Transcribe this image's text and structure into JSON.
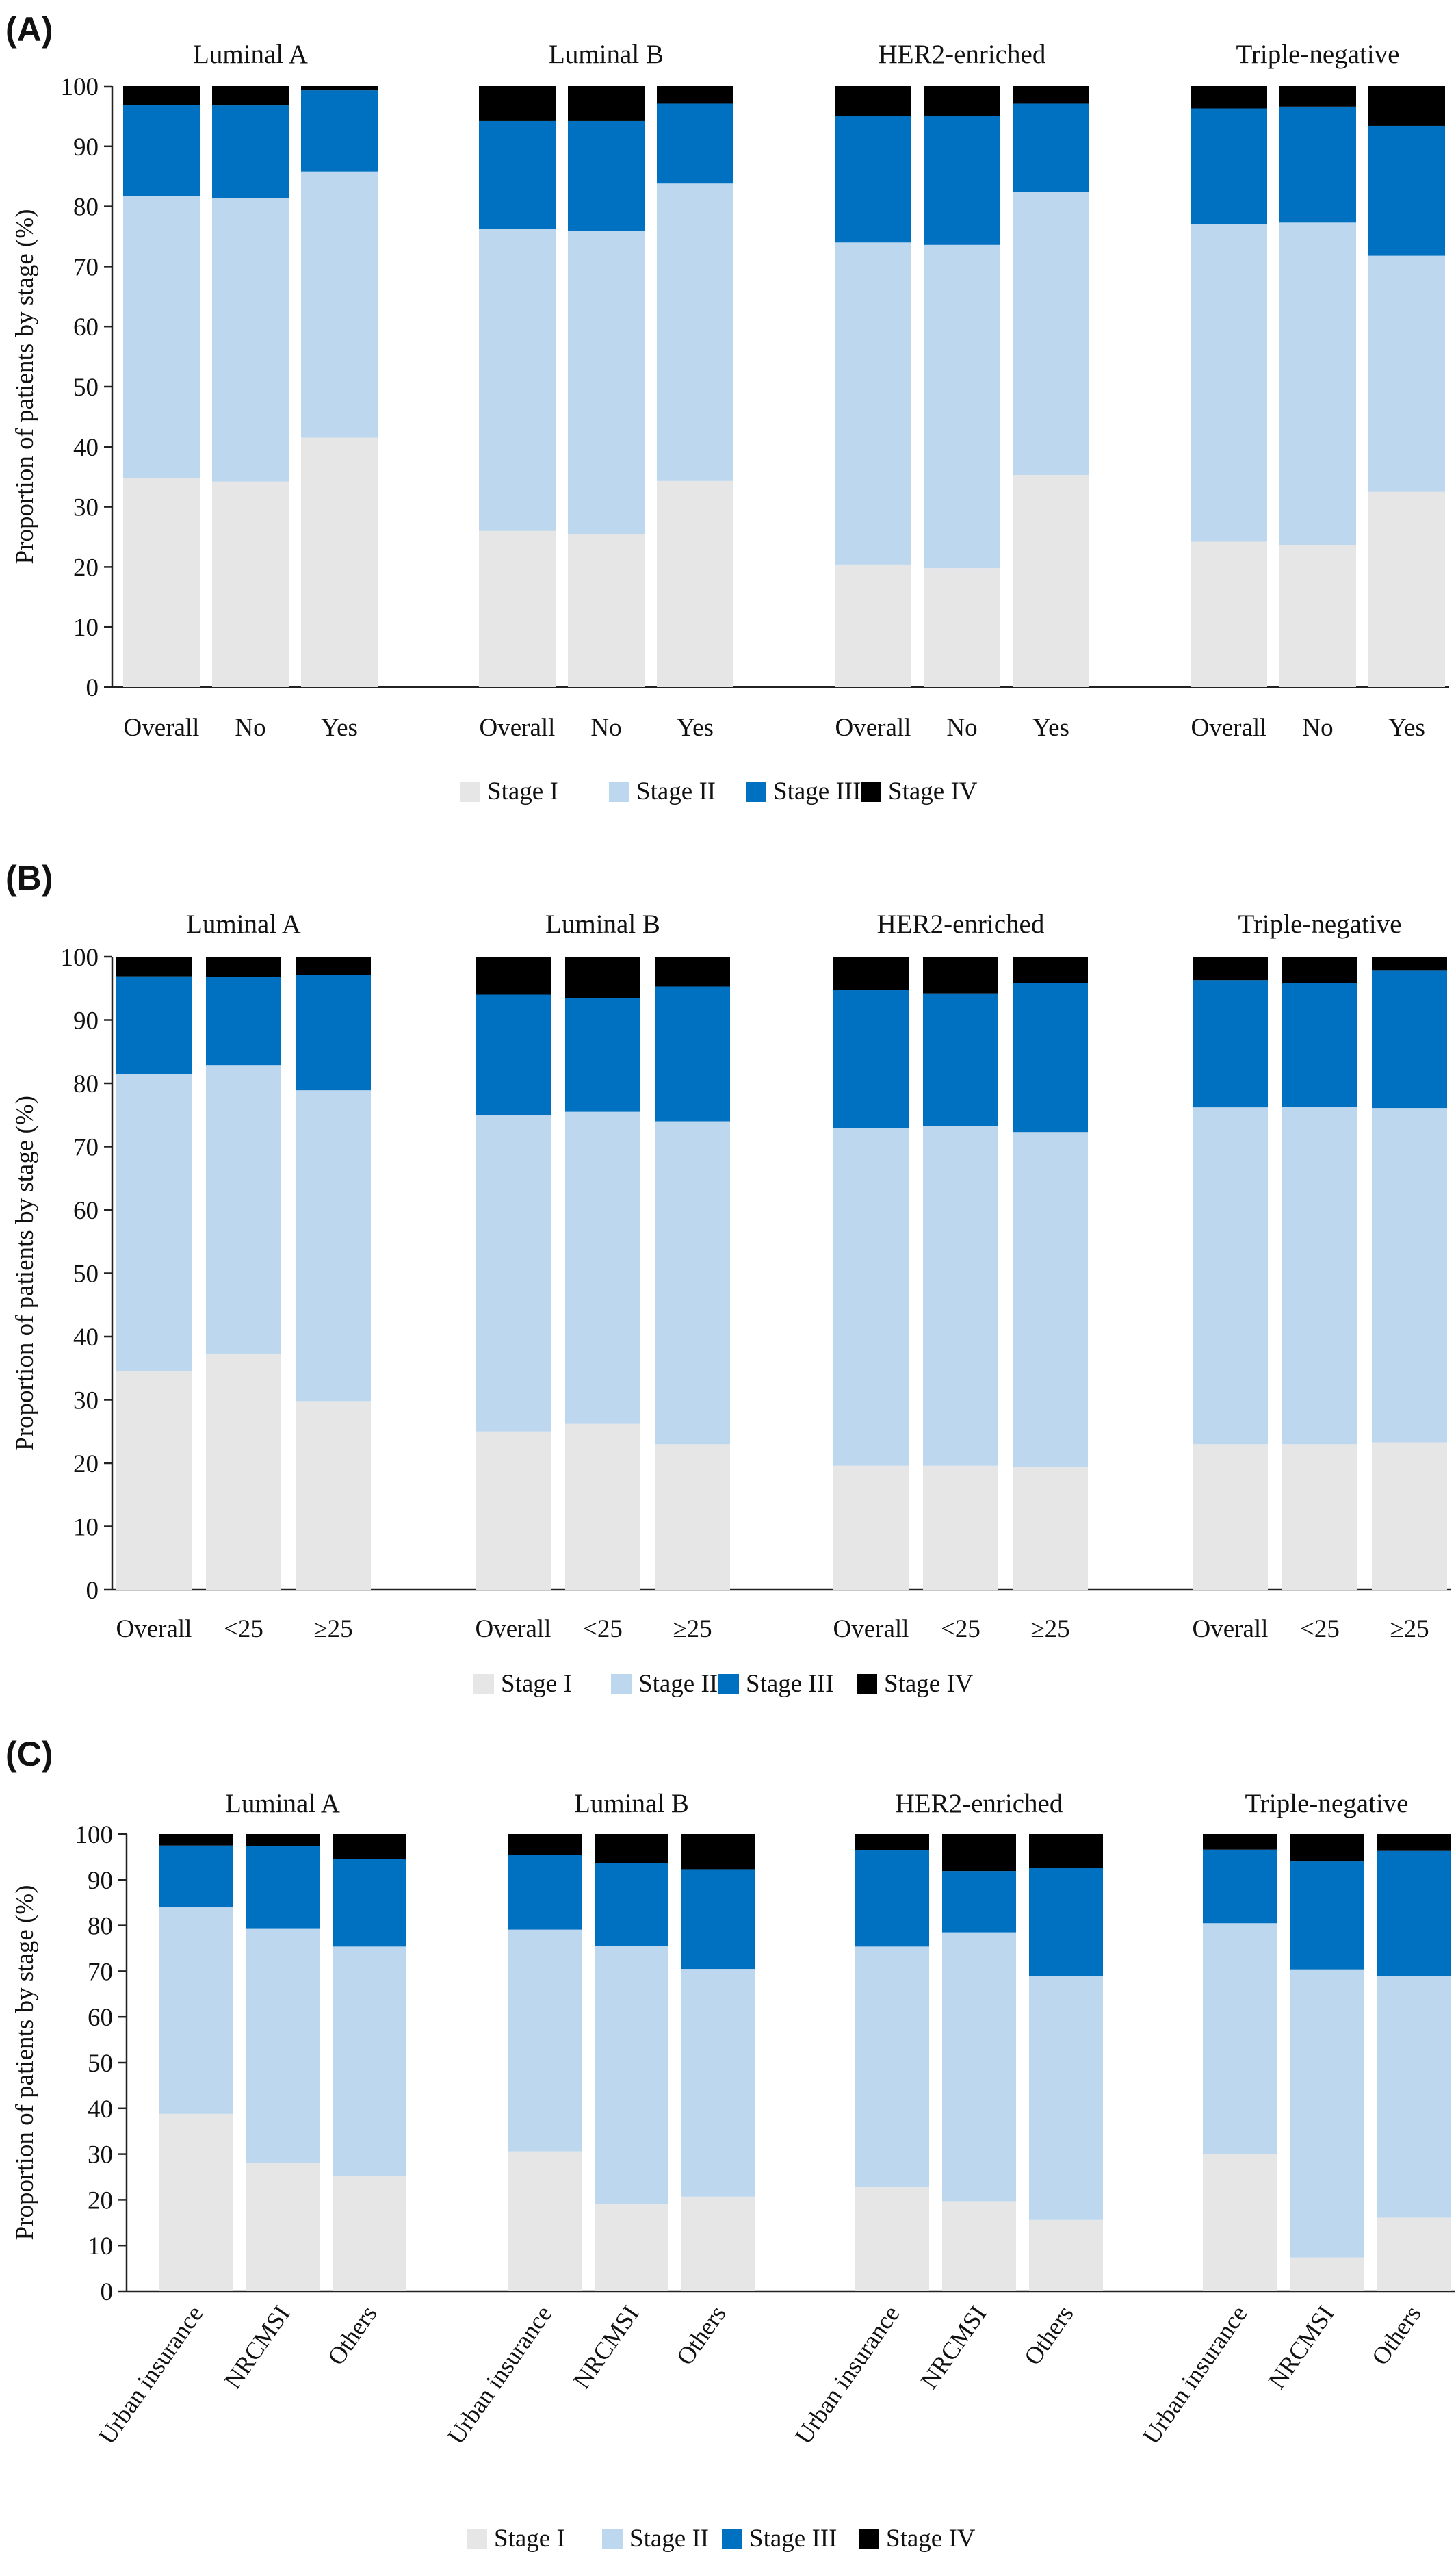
{
  "figure": {
    "colors": {
      "Stage I": "#e6e6e6",
      "Stage II": "#bdd7ee",
      "Stage III": "#0070c0",
      "Stage IV": "#000000"
    },
    "legend_position": "bottom"
  },
  "chart_data": [
    {
      "type": "bar",
      "stacked": true,
      "panel_label": "(A)",
      "ylabel": "Proportion of patients by stage (%)",
      "ylim": [
        0,
        100
      ],
      "yticks": [
        0,
        10,
        20,
        30,
        40,
        50,
        60,
        70,
        80,
        90,
        100
      ],
      "stages": [
        "Stage I",
        "Stage II",
        "Stage III",
        "Stage IV"
      ],
      "groups": [
        {
          "name": "Luminal A",
          "categories": [
            "Overall",
            "No",
            "Yes"
          ],
          "values": [
            [
              34.8,
              46.9,
              15.2,
              3.1
            ],
            [
              34.2,
              47.2,
              15.4,
              3.2
            ],
            [
              41.5,
              44.3,
              13.5,
              0.7
            ]
          ]
        },
        {
          "name": "Luminal B",
          "categories": [
            "Overall",
            "No",
            "Yes"
          ],
          "values": [
            [
              26.0,
              50.2,
              18.0,
              5.8
            ],
            [
              25.5,
              50.4,
              18.3,
              5.8
            ],
            [
              34.3,
              49.5,
              13.3,
              2.9
            ]
          ]
        },
        {
          "name": "HER2-enriched",
          "categories": [
            "Overall",
            "No",
            "Yes"
          ],
          "values": [
            [
              20.4,
              53.6,
              21.1,
              4.9
            ],
            [
              19.8,
              53.8,
              21.5,
              4.9
            ],
            [
              35.3,
              47.1,
              14.7,
              2.9
            ]
          ]
        },
        {
          "name": "Triple-negative",
          "categories": [
            "Overall",
            "No",
            "Yes"
          ],
          "values": [
            [
              24.2,
              52.8,
              19.3,
              3.7
            ],
            [
              23.6,
              53.7,
              19.3,
              3.4
            ],
            [
              32.5,
              39.3,
              21.6,
              6.6
            ]
          ]
        }
      ]
    },
    {
      "type": "bar",
      "stacked": true,
      "panel_label": "(B)",
      "ylabel": "Proportion of patients by stage  (%)",
      "ylim": [
        0,
        100
      ],
      "yticks": [
        0,
        10,
        20,
        30,
        40,
        50,
        60,
        70,
        80,
        90,
        100
      ],
      "stages": [
        "Stage I",
        "Stage II",
        "Stage III",
        "Stage IV"
      ],
      "groups": [
        {
          "name": "Luminal A",
          "categories": [
            "Overall",
            "<25",
            "≥25"
          ],
          "values": [
            [
              34.5,
              47.0,
              15.4,
              3.1
            ],
            [
              37.3,
              45.6,
              13.9,
              3.2
            ],
            [
              29.8,
              49.1,
              18.2,
              2.9
            ]
          ]
        },
        {
          "name": "Luminal B",
          "categories": [
            "Overall",
            "<25",
            "≥25"
          ],
          "values": [
            [
              25.0,
              50.0,
              19.0,
              6.0
            ],
            [
              26.2,
              49.3,
              18.0,
              6.5
            ],
            [
              23.0,
              51.0,
              21.3,
              4.7
            ]
          ]
        },
        {
          "name": "HER2-enriched",
          "categories": [
            "Overall",
            "<25",
            "≥25"
          ],
          "values": [
            [
              19.6,
              53.3,
              21.8,
              5.3
            ],
            [
              19.6,
              53.6,
              21.0,
              5.8
            ],
            [
              19.4,
              52.9,
              23.5,
              4.2
            ]
          ]
        },
        {
          "name": "Triple-negative",
          "categories": [
            "Overall",
            "<25",
            "≥25"
          ],
          "values": [
            [
              23.0,
              53.2,
              20.1,
              3.7
            ],
            [
              23.0,
              53.3,
              19.5,
              4.2
            ],
            [
              23.3,
              52.8,
              21.7,
              2.2
            ]
          ]
        }
      ]
    },
    {
      "type": "bar",
      "stacked": true,
      "panel_label": "(C)",
      "ylabel": "Proportion of patients by stage  (%)",
      "ylim": [
        0,
        100
      ],
      "yticks": [
        0,
        10,
        20,
        30,
        40,
        50,
        60,
        70,
        80,
        90,
        100
      ],
      "stages": [
        "Stage I",
        "Stage II",
        "Stage III",
        "Stage IV"
      ],
      "rotated_xticks": true,
      "groups": [
        {
          "name": "Luminal A",
          "categories": [
            "Urban insurance",
            "NRCMSI",
            "Others"
          ],
          "values": [
            [
              38.8,
              45.2,
              13.5,
              2.5
            ],
            [
              28.1,
              51.3,
              18.0,
              2.6
            ],
            [
              25.3,
              50.1,
              19.1,
              5.5
            ]
          ]
        },
        {
          "name": "Luminal B",
          "categories": [
            "Urban insurance",
            "NRCMSI",
            "Others"
          ],
          "values": [
            [
              30.6,
              48.5,
              16.3,
              4.6
            ],
            [
              19.0,
              56.5,
              18.1,
              6.4
            ],
            [
              20.7,
              49.8,
              21.8,
              7.7
            ]
          ]
        },
        {
          "name": "HER2-enriched",
          "categories": [
            "Urban insurance",
            "NRCMSI",
            "Others"
          ],
          "values": [
            [
              22.9,
              52.5,
              21.0,
              3.6
            ],
            [
              19.7,
              58.8,
              13.4,
              8.1
            ],
            [
              15.6,
              53.4,
              23.6,
              7.4
            ]
          ]
        },
        {
          "name": "Triple-negative",
          "categories": [
            "Urban insurance",
            "NRCMSI",
            "Others"
          ],
          "values": [
            [
              30.0,
              50.5,
              16.1,
              3.4
            ],
            [
              7.4,
              63.0,
              23.6,
              6.0
            ],
            [
              16.1,
              52.8,
              27.4,
              3.7
            ]
          ]
        }
      ]
    }
  ]
}
